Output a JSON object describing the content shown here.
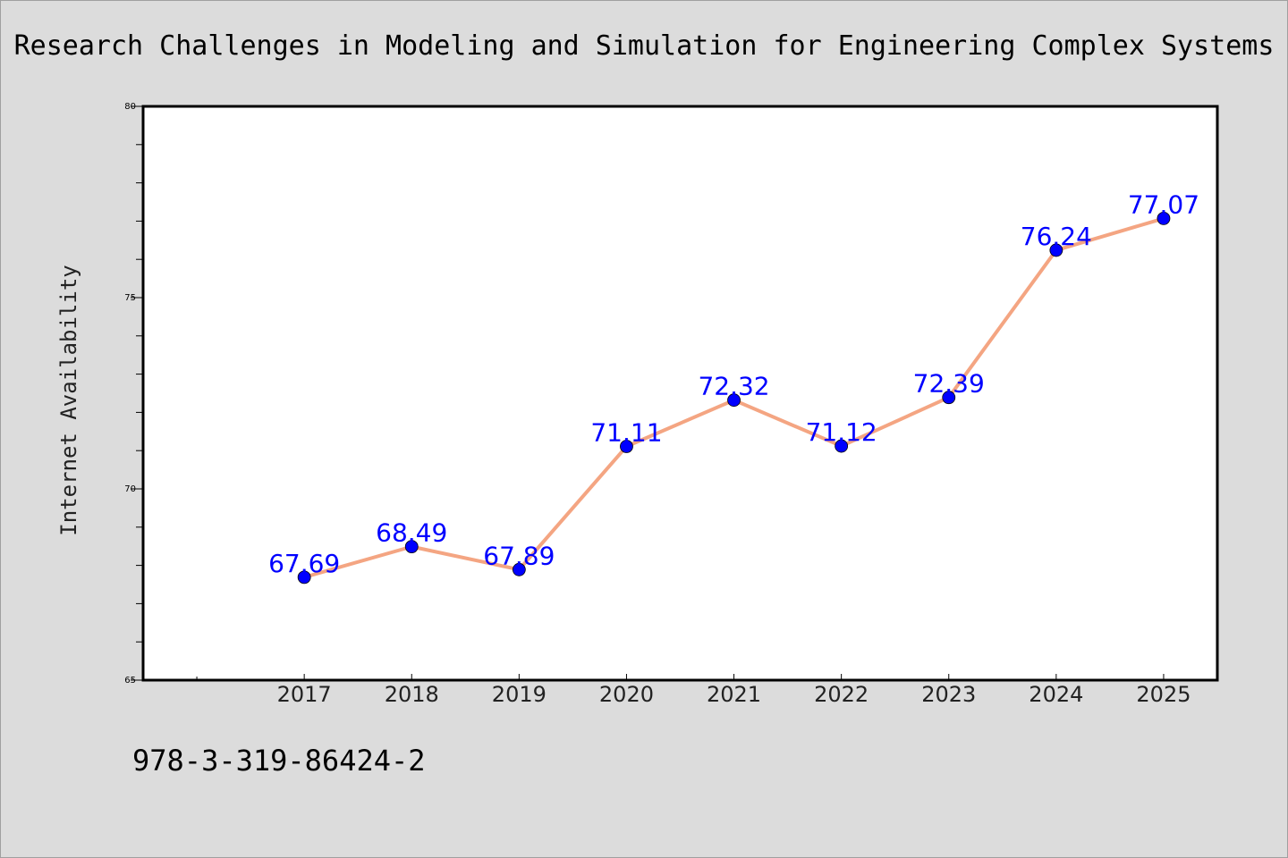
{
  "title": "Research Challenges in Modeling and Simulation for Engineering Complex Systems",
  "footer_text": "978-3-319-86424-2",
  "colors": {
    "background": "#dcdcdc",
    "plot_background": "#ffffff",
    "line": "#f4a582",
    "marker": "#0000ff",
    "data_label": "#0000ff"
  },
  "chart_data": {
    "type": "line",
    "title": "Research Challenges in Modeling and Simulation for Engineering Complex Systems",
    "xlabel": "",
    "ylabel": "Internet Availability",
    "categories": [
      "2017",
      "2018",
      "2019",
      "2020",
      "2021",
      "2022",
      "2023",
      "2024",
      "2025"
    ],
    "series": [
      {
        "values": [
          67.69,
          68.49,
          67.89,
          71.11,
          72.32,
          71.12,
          72.39,
          76.24,
          77.07
        ],
        "data_labels": [
          "67.69",
          "68.49",
          "67.89",
          "71.11",
          "72.32",
          "71.12",
          "72.39",
          "76.24",
          "77.07"
        ]
      }
    ],
    "ylim": [
      65,
      80
    ],
    "yticks": [
      65,
      70,
      75,
      80
    ],
    "yminor_step": 1,
    "xlim": [
      2015.5,
      2025.5
    ],
    "xminor": [
      2016
    ],
    "grid": false,
    "legend": "none",
    "markers": "circle"
  }
}
